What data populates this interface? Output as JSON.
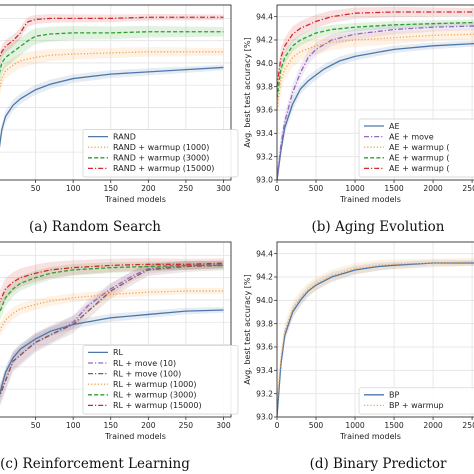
{
  "chart_data": [
    {
      "type": "line",
      "caption": "(a) Random Search",
      "xlabel": "Trained models",
      "ylabel": "",
      "xlim": [
        0,
        310
      ],
      "ylim": [
        92.95,
        94.52
      ],
      "xticks": [
        50,
        100,
        150,
        200,
        250,
        300
      ],
      "yticks": [],
      "grid": true,
      "legend_position": "bottom-right",
      "series": [
        {
          "name": "RAND",
          "color": "#4c78a8",
          "dash": "solid",
          "x": [
            0,
            5,
            10,
            20,
            30,
            50,
            70,
            100,
            150,
            200,
            250,
            300
          ],
          "y": [
            93.15,
            93.4,
            93.52,
            93.62,
            93.68,
            93.76,
            93.81,
            93.86,
            93.9,
            93.92,
            93.94,
            93.96
          ]
        },
        {
          "name": "RAND + warmup (1000)",
          "color": "#f5a04a",
          "dash": "dot",
          "x": [
            0,
            5,
            10,
            20,
            30,
            50,
            70,
            100,
            150,
            200,
            250,
            300
          ],
          "y": [
            93.7,
            93.86,
            93.93,
            93.98,
            94.02,
            94.05,
            94.07,
            94.08,
            94.09,
            94.1,
            94.1,
            94.1
          ]
        },
        {
          "name": "RAND + warmup (3000)",
          "color": "#2ca02c",
          "dash": "dash",
          "x": [
            0,
            5,
            10,
            20,
            30,
            40,
            50,
            70,
            100,
            150,
            200,
            250,
            300
          ],
          "y": [
            93.85,
            94.0,
            94.05,
            94.1,
            94.15,
            94.2,
            94.24,
            94.26,
            94.27,
            94.27,
            94.28,
            94.28,
            94.28
          ]
        },
        {
          "name": "RAND + warmup (15000)",
          "color": "#d62728",
          "dash": "dashdot",
          "x": [
            0,
            5,
            10,
            20,
            30,
            35,
            40,
            50,
            70,
            100,
            150,
            200,
            250,
            300
          ],
          "y": [
            94.0,
            94.1,
            94.15,
            94.2,
            94.27,
            94.33,
            94.37,
            94.39,
            94.4,
            94.4,
            94.4,
            94.41,
            94.41,
            94.41
          ]
        }
      ]
    },
    {
      "type": "line",
      "caption": "(b) Aging Evolution",
      "xlabel": "Trained models",
      "ylabel": "Avg. best test accuracy [%]",
      "xlim": [
        0,
        2550
      ],
      "ylim": [
        93.0,
        94.5
      ],
      "xticks": [
        0,
        500,
        1000,
        1500,
        2000,
        2500
      ],
      "yticks": [
        93.0,
        93.2,
        93.4,
        93.6,
        93.8,
        94.0,
        94.2,
        94.4
      ],
      "grid": true,
      "legend_position": "bottom-right",
      "series": [
        {
          "name": "AE",
          "color": "#4c78a8",
          "dash": "solid",
          "x": [
            0,
            50,
            100,
            200,
            300,
            400,
            600,
            800,
            1000,
            1500,
            2000,
            2550
          ],
          "y": [
            93.0,
            93.25,
            93.45,
            93.65,
            93.78,
            93.85,
            93.95,
            94.02,
            94.06,
            94.12,
            94.15,
            94.17
          ]
        },
        {
          "name": "AE + move",
          "color": "#9467bd",
          "dash": "dashdot",
          "x": [
            0,
            50,
            100,
            200,
            300,
            400,
            500,
            700,
            1000,
            1500,
            2000,
            2550
          ],
          "y": [
            93.0,
            93.3,
            93.5,
            93.75,
            93.92,
            94.05,
            94.12,
            94.2,
            94.25,
            94.29,
            94.31,
            94.32
          ]
        },
        {
          "name": "AE + warmup (",
          "color": "#f5a04a",
          "dash": "dot",
          "x": [
            0,
            50,
            100,
            200,
            300,
            500,
            700,
            1000,
            1500,
            2000,
            2550
          ],
          "y": [
            93.6,
            93.85,
            93.95,
            94.05,
            94.1,
            94.15,
            94.18,
            94.2,
            94.22,
            94.24,
            94.25
          ]
        },
        {
          "name": "AE + warmup (",
          "color": "#2ca02c",
          "dash": "dash",
          "x": [
            0,
            50,
            100,
            200,
            300,
            500,
            700,
            1000,
            1500,
            2000,
            2550
          ],
          "y": [
            93.7,
            93.95,
            94.05,
            94.15,
            94.2,
            94.26,
            94.29,
            94.31,
            94.33,
            94.34,
            94.35
          ]
        },
        {
          "name": "AE + warmup (",
          "color": "#d62728",
          "dash": "dashdot",
          "x": [
            0,
            50,
            100,
            200,
            300,
            500,
            700,
            1000,
            1500,
            2000,
            2550
          ],
          "y": [
            93.8,
            94.05,
            94.15,
            94.25,
            94.3,
            94.36,
            94.4,
            94.43,
            94.44,
            94.44,
            94.44
          ]
        }
      ]
    },
    {
      "type": "line",
      "caption": "(c) Reinforcement Learning",
      "xlabel": "Trained models",
      "ylabel": "",
      "xlim": [
        0,
        310
      ],
      "ylim": [
        92.95,
        94.52
      ],
      "xticks": [
        50,
        100,
        150,
        200,
        250,
        300
      ],
      "yticks": [],
      "grid": true,
      "legend_position": "bottom-right",
      "series": [
        {
          "name": "RL",
          "color": "#4c78a8",
          "dash": "solid",
          "x": [
            0,
            10,
            20,
            30,
            50,
            70,
            100,
            150,
            200,
            250,
            300
          ],
          "y": [
            93.1,
            93.35,
            93.48,
            93.56,
            93.65,
            93.72,
            93.78,
            93.84,
            93.87,
            93.9,
            93.91
          ]
        },
        {
          "name": "RL + move (10)",
          "color": "#9467bd",
          "dash": "dashdot",
          "x": [
            0,
            20,
            50,
            80,
            100,
            120,
            150,
            180,
            200,
            250,
            300
          ],
          "y": [
            93.1,
            93.45,
            93.62,
            93.72,
            93.8,
            93.95,
            94.1,
            94.22,
            94.28,
            94.31,
            94.32
          ]
        },
        {
          "name": "RL + move (100)",
          "color": "#8c564b",
          "dash": "dashdot",
          "x": [
            0,
            20,
            50,
            80,
            100,
            120,
            150,
            180,
            200,
            250,
            300
          ],
          "y": [
            93.1,
            93.45,
            93.62,
            93.72,
            93.78,
            93.9,
            94.08,
            94.2,
            94.27,
            94.3,
            94.31
          ]
        },
        {
          "name": "RL + warmup (1000)",
          "color": "#f5a04a",
          "dash": "dot",
          "x": [
            0,
            10,
            20,
            30,
            50,
            70,
            100,
            150,
            200,
            250,
            300
          ],
          "y": [
            93.7,
            93.82,
            93.88,
            93.92,
            93.96,
            93.99,
            94.02,
            94.05,
            94.07,
            94.08,
            94.08
          ]
        },
        {
          "name": "RL + warmup (3000)",
          "color": "#2ca02c",
          "dash": "dash",
          "x": [
            0,
            10,
            20,
            30,
            50,
            70,
            100,
            150,
            200,
            250,
            300
          ],
          "y": [
            93.85,
            94.02,
            94.1,
            94.15,
            94.2,
            94.24,
            94.27,
            94.29,
            94.3,
            94.31,
            94.31
          ]
        },
        {
          "name": "RL + warmup (15000)",
          "color": "#d62728",
          "dash": "dashdot",
          "x": [
            0,
            10,
            20,
            30,
            50,
            70,
            100,
            150,
            200,
            250,
            300
          ],
          "y": [
            93.95,
            94.1,
            94.16,
            94.2,
            94.24,
            94.27,
            94.29,
            94.31,
            94.32,
            94.32,
            94.33
          ]
        }
      ]
    },
    {
      "type": "line",
      "caption": "(d) Binary Predictor",
      "xlabel": "Trained models",
      "ylabel": "Avg. best test accuracy [%]",
      "xlim": [
        0,
        2550
      ],
      "ylim": [
        93.0,
        94.5
      ],
      "xticks": [
        0,
        500,
        1000,
        1500,
        2000,
        2500
      ],
      "yticks": [
        93.0,
        93.2,
        93.4,
        93.6,
        93.8,
        94.0,
        94.2,
        94.4
      ],
      "grid": true,
      "legend_position": "bottom-right",
      "series": [
        {
          "name": "BP",
          "color": "#4c78a8",
          "dash": "solid",
          "x": [
            0,
            50,
            100,
            200,
            300,
            400,
            500,
            700,
            1000,
            1300,
            1500,
            2000,
            2550
          ],
          "y": [
            93.0,
            93.45,
            93.7,
            93.9,
            94.0,
            94.08,
            94.13,
            94.2,
            94.26,
            94.29,
            94.3,
            94.32,
            94.32
          ]
        },
        {
          "name": "BP + warmup",
          "color": "#f5a04a",
          "dash": "dot",
          "x": [
            0,
            50,
            100,
            200,
            300,
            400,
            500,
            700,
            1000,
            1300,
            1500,
            2000,
            2550
          ],
          "y": [
            93.1,
            93.5,
            93.74,
            93.92,
            94.02,
            94.09,
            94.14,
            94.21,
            94.27,
            94.3,
            94.31,
            94.32,
            94.33
          ]
        }
      ]
    }
  ]
}
